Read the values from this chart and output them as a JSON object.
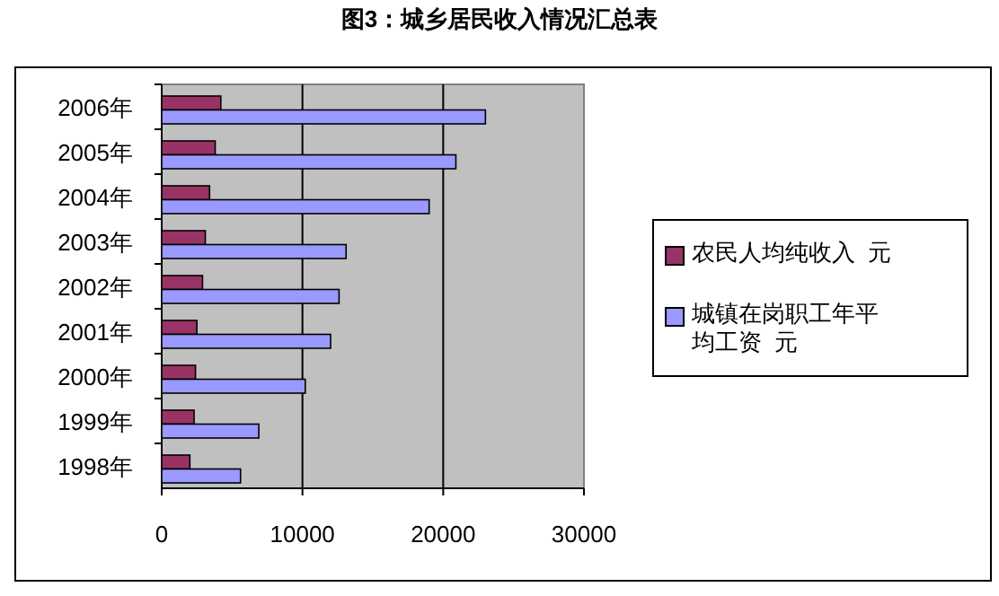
{
  "chart_data": {
    "type": "bar",
    "orientation": "horizontal",
    "title": "图3：城乡居民收入情况汇总表",
    "categories": [
      "2006年",
      "2005年",
      "2004年",
      "2003年",
      "2002年",
      "2001年",
      "2000年",
      "1999年",
      "1998年"
    ],
    "series": [
      {
        "name": "农民人均纯收入  元",
        "color": "#993366",
        "values": [
          4200,
          3800,
          3400,
          3100,
          2900,
          2500,
          2400,
          2300,
          2000
        ]
      },
      {
        "name": "城镇在岗职工年平均工资  元",
        "color": "#9999ff",
        "values": [
          23000,
          20900,
          19000,
          13100,
          12600,
          12000,
          10200,
          6900,
          5600
        ]
      }
    ],
    "xlim": [
      0,
      30000
    ],
    "xticks": [
      0,
      10000,
      20000,
      30000
    ],
    "grid": "x",
    "legend": "right"
  }
}
